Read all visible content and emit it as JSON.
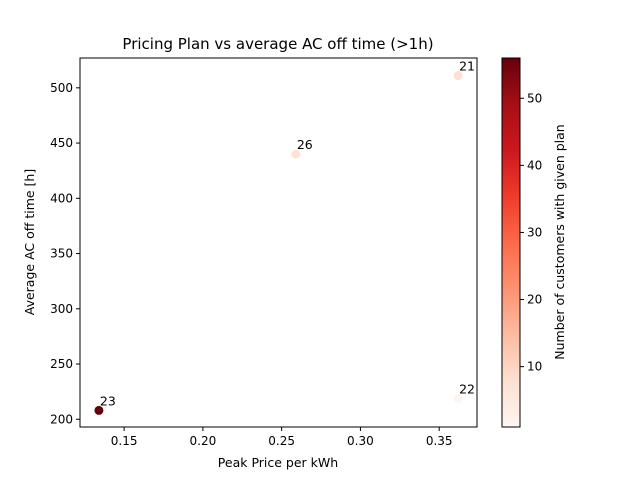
{
  "chart_data": {
    "type": "scatter",
    "title": "Pricing Plan vs average AC off time (>1h)",
    "xlabel": "Peak Price per kWh",
    "ylabel": "Average AC off time [h]",
    "xlim": [
      0.122,
      0.374
    ],
    "ylim": [
      193,
      527
    ],
    "xticks": [
      0.15,
      0.2,
      0.25,
      0.3,
      0.35
    ],
    "xtick_labels": [
      "0.15",
      "0.20",
      "0.25",
      "0.30",
      "0.35"
    ],
    "yticks": [
      200,
      250,
      300,
      350,
      400,
      450,
      500
    ],
    "ytick_labels": [
      "200",
      "250",
      "300",
      "350",
      "400",
      "450",
      "500"
    ],
    "points": [
      {
        "label": "23",
        "x": 0.134,
        "y": 208,
        "customers": 56
      },
      {
        "label": "26",
        "x": 0.259,
        "y": 440,
        "customers": 7
      },
      {
        "label": "21",
        "x": 0.362,
        "y": 511,
        "customers": 8
      },
      {
        "label": "22",
        "x": 0.362,
        "y": 219,
        "customers": 1
      }
    ],
    "colorbar": {
      "label": "Number of customers with given plan",
      "colormap": "Reds",
      "range": [
        1,
        56
      ],
      "ticks": [
        10,
        20,
        30,
        40,
        50
      ],
      "tick_labels": [
        "10",
        "20",
        "30",
        "40",
        "50"
      ]
    },
    "grid": false
  }
}
